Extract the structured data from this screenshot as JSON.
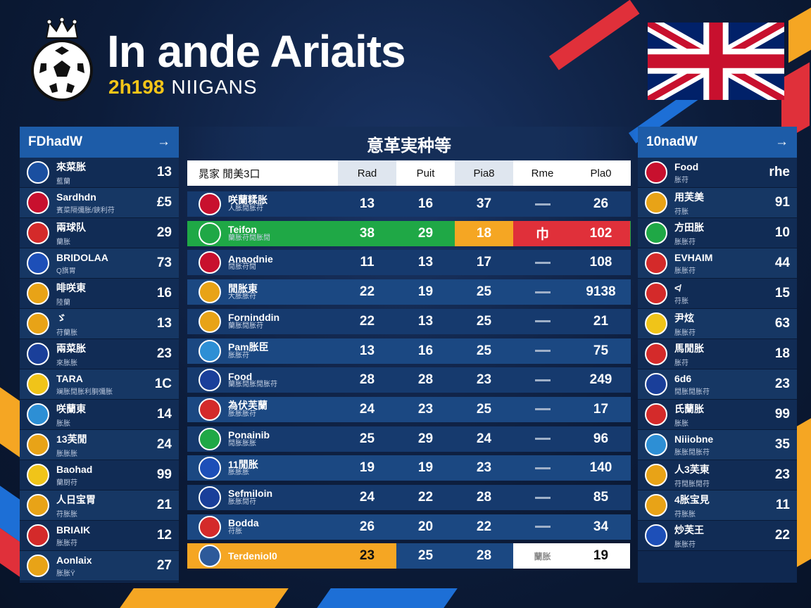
{
  "header": {
    "title": "In ande Ariaits",
    "subtitle_num": "2h198",
    "subtitle_text": "NIIGANS"
  },
  "colors": {
    "accent_blue": "#1d5ca8",
    "green": "#1fa846",
    "orange": "#f5a623",
    "red": "#e0303a",
    "gold": "#f5c518"
  },
  "left_panel": {
    "title": "FDhadW",
    "arrow": "→",
    "rows": [
      {
        "name": "來菜胀",
        "sub": "藍蘭",
        "value": "13",
        "crest": "#1a4fa0",
        "icon": "flag-icon"
      },
      {
        "name": "Sardhdn",
        "sub": "賓菜隔彌胀/鋏利苻",
        "value": "£5",
        "crest": "#c8102e",
        "icon": "flag-icon"
      },
      {
        "name": "兩球队",
        "sub": "蘭胀",
        "value": "29",
        "crest": "#d42a2a",
        "icon": "crest-icon"
      },
      {
        "name": "BRIDOLAA",
        "sub": "Q旗胃",
        "value": "73",
        "crest": "#1d4fb8",
        "icon": "flag-icon"
      },
      {
        "name": "啡咲東",
        "sub": "陸蘭",
        "value": "16",
        "crest": "#e8a317",
        "icon": "crest-icon"
      },
      {
        "name": "ゞ",
        "sub": "苻蘭胀",
        "value": "13",
        "crest": "#e8a317",
        "icon": "crest-icon"
      },
      {
        "name": "兩菜胀",
        "sub": "來胀胀",
        "value": "23",
        "crest": "#1a3f9a",
        "icon": "flag-icon"
      },
      {
        "name": "TARA",
        "sub": "斓胀閒胀利胴彌胀",
        "value": "1C",
        "crest": "#f0c419",
        "icon": "crest-icon"
      },
      {
        "name": "咲蘭東",
        "sub": "胀胀",
        "value": "14",
        "crest": "#2d8fd5",
        "icon": "crest-icon"
      },
      {
        "name": "13芙閒",
        "sub": "胀胀胀",
        "value": "24",
        "crest": "#e8a317",
        "icon": "crest-icon"
      },
      {
        "name": "Baohad",
        "sub": "蘭厨苻",
        "value": "99",
        "crest": "#f0c419",
        "icon": "crest-icon"
      },
      {
        "name": "人日宝胃",
        "sub": "苻胀胀",
        "value": "21",
        "crest": "#e8a317",
        "icon": "crest-icon"
      },
      {
        "name": "BRIAIK",
        "sub": "胀胀苻",
        "value": "12",
        "crest": "#d42a2a",
        "icon": "flag-icon"
      },
      {
        "name": "Aonlaix",
        "sub": "胀胀Ϋ",
        "value": "27",
        "crest": "#e8a317",
        "icon": "crest-icon"
      }
    ]
  },
  "center": {
    "title": "意革実种等",
    "columns": [
      "晁家   閒美3口",
      "Rad",
      "Puit",
      "Pia8",
      "Rme",
      "Pla0"
    ],
    "rows": [
      {
        "name": "咲蘭糅胀",
        "sub": "人胀閒胀苻",
        "v1": "13",
        "v2": "16",
        "v3": "37",
        "v4": "—",
        "v5": "26",
        "crest": "#c8102e",
        "style": "normal"
      },
      {
        "name": "Teifon",
        "sub": "蘭胀苻閒胀閒",
        "v1": "38",
        "v2": "29",
        "v3": "18",
        "v4": "巾",
        "v5": "102",
        "crest": "#1fa846",
        "style": "highlight"
      },
      {
        "name": "Anaodnie",
        "sub": "閒胀苻閒",
        "v1": "11",
        "v2": "13",
        "v3": "17",
        "v4": "—",
        "v5": "108",
        "crest": "#c8102e",
        "style": "normal"
      },
      {
        "name": "閒胀東",
        "sub": "大胀胀苻",
        "v1": "22",
        "v2": "19",
        "v3": "25",
        "v4": "—",
        "v5": "9138",
        "crest": "#e8a317",
        "style": "normal"
      },
      {
        "name": "Forninddin",
        "sub": "蘭胀閒胀苻",
        "v1": "22",
        "v2": "13",
        "v3": "25",
        "v4": "—",
        "v5": "21",
        "crest": "#e8a317",
        "style": "normal"
      },
      {
        "name": "Pam胀臣",
        "sub": "胀胀苻",
        "v1": "13",
        "v2": "16",
        "v3": "25",
        "v4": "—",
        "v5": "75",
        "crest": "#2d8fd5",
        "style": "normal"
      },
      {
        "name": "Food",
        "sub": "蘭胀閒胀閒胀苻",
        "v1": "28",
        "v2": "28",
        "v3": "23",
        "v4": "—",
        "v5": "249",
        "crest": "#1a3f9a",
        "style": "normal"
      },
      {
        "name": "為伏芙蘭",
        "sub": "胀胀胀苻",
        "v1": "24",
        "v2": "23",
        "v3": "25",
        "v4": "—",
        "v5": "17",
        "crest": "#d42a2a",
        "style": "normal"
      },
      {
        "name": "Ponainib",
        "sub": "閒胀胀胀",
        "v1": "25",
        "v2": "29",
        "v3": "24",
        "v4": "—",
        "v5": "96",
        "crest": "#1fa846",
        "style": "normal"
      },
      {
        "name": "11閒胀",
        "sub": "胀胀胀",
        "v1": "19",
        "v2": "19",
        "v3": "23",
        "v4": "—",
        "v5": "140",
        "crest": "#1d4fb8",
        "style": "normal"
      },
      {
        "name": "Sefmiloin",
        "sub": "胀胀閒苻",
        "v1": "24",
        "v2": "22",
        "v3": "28",
        "v4": "—",
        "v5": "85",
        "crest": "#1a3f9a",
        "style": "normal"
      },
      {
        "name": "Bodda",
        "sub": "苻胀",
        "v1": "26",
        "v2": "20",
        "v3": "22",
        "v4": "—",
        "v5": "34",
        "crest": "#d42a2a",
        "style": "normal"
      },
      {
        "name": "Terdeniol0",
        "sub": "",
        "v1": "23",
        "v2": "25",
        "v3": "28",
        "v4": "蘭胀",
        "v5": "19",
        "crest": "#2d5a9a",
        "style": "footer"
      }
    ]
  },
  "right_panel": {
    "title": "10nadW",
    "arrow": "→",
    "rows": [
      {
        "name": "Food",
        "sub": "胀苻",
        "value": "rhe",
        "crest": "#c8102e",
        "icon": "flag-icon"
      },
      {
        "name": "用芙美",
        "sub": "苻胀",
        "value": "91",
        "crest": "#e8a317",
        "icon": "crest-icon"
      },
      {
        "name": "方田胀",
        "sub": "胀胀苻",
        "value": "10",
        "crest": "#1fa846",
        "icon": "crest-icon"
      },
      {
        "name": "EVHAIM",
        "sub": "胀胀苻",
        "value": "44",
        "crest": "#d42a2a",
        "icon": "crest-icon"
      },
      {
        "name": "≮",
        "sub": "苻胀",
        "value": "15",
        "crest": "#d42a2a",
        "icon": "crest-icon"
      },
      {
        "name": "尹炫",
        "sub": "胀胀苻",
        "value": "63",
        "crest": "#f0c419",
        "icon": "crest-icon"
      },
      {
        "name": "馬閒胀",
        "sub": "胀苻",
        "value": "18",
        "crest": "#d42a2a",
        "icon": "crest-icon"
      },
      {
        "name": "6d6",
        "sub": "閒胀閒胀苻",
        "value": "23",
        "crest": "#1a3f9a",
        "icon": "crest-icon"
      },
      {
        "name": "氏蘭胀",
        "sub": "胀胀",
        "value": "99",
        "crest": "#d42a2a",
        "icon": "crest-icon"
      },
      {
        "name": "Niiiobne",
        "sub": "胀胀閒胀苻",
        "value": "35",
        "crest": "#2d8fd5",
        "icon": "crest-icon"
      },
      {
        "name": "人3芙東",
        "sub": "苻閒胀閒苻",
        "value": "23",
        "crest": "#e8a317",
        "icon": "crest-icon"
      },
      {
        "name": "4胀宝見",
        "sub": "苻胀胀",
        "value": "11",
        "crest": "#e8a317",
        "icon": "crest-icon"
      },
      {
        "name": "炒芙王",
        "sub": "胀胀苻",
        "value": "22",
        "crest": "#1d4fb8",
        "icon": "crest-icon"
      }
    ]
  }
}
